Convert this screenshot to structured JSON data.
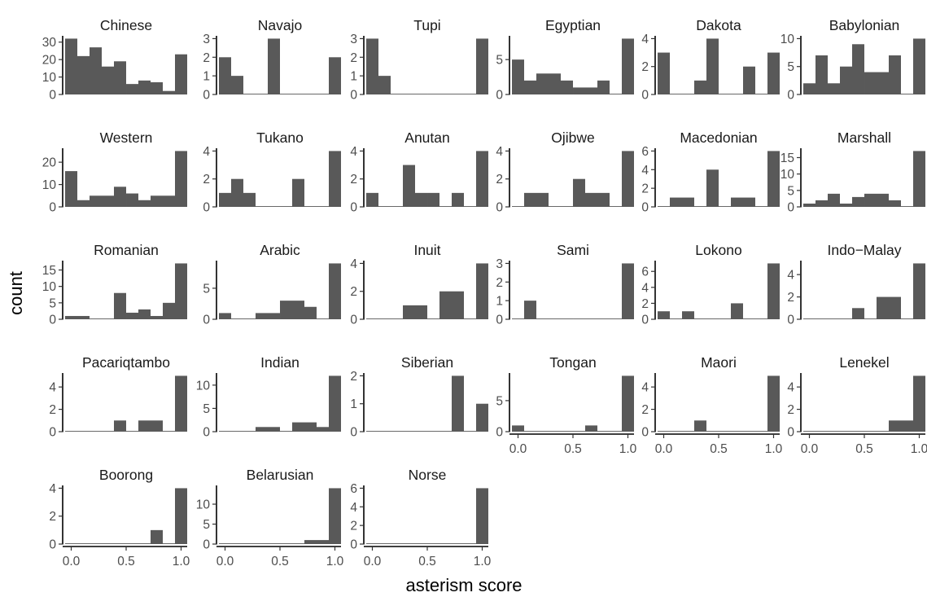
{
  "chart_data": {
    "type": "bar",
    "subtype": "faceted-histogram",
    "xlabel": "asterism score",
    "ylabel": "count",
    "bar_color": "#595959",
    "grid": false,
    "bin_centers": [
      0,
      0.1111,
      0.2222,
      0.3333,
      0.4444,
      0.5556,
      0.6667,
      0.7778,
      0.8889,
      1
    ],
    "x_range": [
      -0.0556,
      1.0556
    ],
    "x_ticks": [
      0,
      0.5,
      1
    ],
    "x_tick_labels": [
      "0.0",
      "0.5",
      "1.0"
    ],
    "panels": [
      {
        "name": "Chinese",
        "counts": [
          32,
          22,
          27,
          16,
          19,
          6,
          8,
          7,
          2,
          23
        ],
        "yticks": [
          0,
          10,
          20,
          30
        ],
        "ymax": 33.6
      },
      {
        "name": "Navajo",
        "counts": [
          2,
          1,
          0,
          0,
          3,
          0,
          0,
          0,
          0,
          2
        ],
        "yticks": [
          0,
          1,
          2,
          3
        ],
        "ymax": 3.15
      },
      {
        "name": "Tupi",
        "counts": [
          3,
          1,
          0,
          0,
          0,
          0,
          0,
          0,
          0,
          3
        ],
        "yticks": [
          0,
          1,
          2,
          3
        ],
        "ymax": 3.15
      },
      {
        "name": "Egyptian",
        "counts": [
          5,
          2,
          3,
          3,
          2,
          1,
          1,
          2,
          0,
          8
        ],
        "yticks": [
          0,
          5
        ],
        "ymax": 8.4
      },
      {
        "name": "Dakota",
        "counts": [
          3,
          0,
          0,
          1,
          4,
          0,
          0,
          2,
          0,
          3
        ],
        "yticks": [
          0,
          2,
          4
        ],
        "ymax": 4.2
      },
      {
        "name": "Babylonian",
        "counts": [
          2,
          7,
          2,
          5,
          9,
          4,
          4,
          7,
          0,
          10
        ],
        "yticks": [
          0,
          5,
          10
        ],
        "ymax": 10.5
      },
      {
        "name": "Western",
        "counts": [
          16,
          3,
          5,
          5,
          9,
          6,
          3,
          5,
          5,
          25
        ],
        "yticks": [
          0,
          10,
          20
        ],
        "ymax": 26.25
      },
      {
        "name": "Tukano",
        "counts": [
          1,
          2,
          1,
          0,
          0,
          0,
          2,
          0,
          0,
          4
        ],
        "yticks": [
          0,
          2,
          4
        ],
        "ymax": 4.2
      },
      {
        "name": "Anutan",
        "counts": [
          1,
          0,
          0,
          3,
          1,
          1,
          0,
          1,
          0,
          4
        ],
        "yticks": [
          0,
          2,
          4
        ],
        "ymax": 4.2
      },
      {
        "name": "Ojibwe",
        "counts": [
          0,
          1,
          1,
          0,
          0,
          2,
          1,
          1,
          0,
          4
        ],
        "yticks": [
          0,
          2,
          4
        ],
        "ymax": 4.2
      },
      {
        "name": "Macedonian",
        "counts": [
          0,
          1,
          1,
          0,
          4,
          0,
          1,
          1,
          0,
          6
        ],
        "yticks": [
          0,
          2,
          4,
          6
        ],
        "ymax": 6.3
      },
      {
        "name": "Marshall",
        "counts": [
          1,
          2,
          4,
          1,
          3,
          4,
          4,
          2,
          0,
          17
        ],
        "yticks": [
          0,
          5,
          10,
          15
        ],
        "ymax": 17.85
      },
      {
        "name": "Romanian",
        "counts": [
          1,
          1,
          0,
          0,
          8,
          2,
          3,
          1,
          5,
          17
        ],
        "yticks": [
          0,
          5,
          10,
          15
        ],
        "ymax": 17.85
      },
      {
        "name": "Arabic",
        "counts": [
          1,
          0,
          0,
          1,
          1,
          3,
          3,
          2,
          0,
          9
        ],
        "yticks": [
          0,
          5
        ],
        "ymax": 9.45
      },
      {
        "name": "Inuit",
        "counts": [
          0,
          0,
          0,
          1,
          1,
          0,
          2,
          2,
          0,
          4
        ],
        "yticks": [
          0,
          2,
          4
        ],
        "ymax": 4.2
      },
      {
        "name": "Sami",
        "counts": [
          0,
          1,
          0,
          0,
          0,
          0,
          0,
          0,
          0,
          3
        ],
        "yticks": [
          0,
          1,
          2,
          3
        ],
        "ymax": 3.15
      },
      {
        "name": "Lokono",
        "counts": [
          1,
          0,
          1,
          0,
          0,
          0,
          2,
          0,
          0,
          7
        ],
        "yticks": [
          0,
          2,
          4,
          6
        ],
        "ymax": 7.35
      },
      {
        "name": "Indo−Malay",
        "counts": [
          0,
          0,
          0,
          0,
          1,
          0,
          2,
          2,
          0,
          5
        ],
        "yticks": [
          0,
          2,
          4
        ],
        "ymax": 5.25
      },
      {
        "name": "Pacariqtambo",
        "counts": [
          0,
          0,
          0,
          0,
          1,
          0,
          1,
          1,
          0,
          5
        ],
        "yticks": [
          0,
          2,
          4
        ],
        "ymax": 5.25
      },
      {
        "name": "Indian",
        "counts": [
          0,
          0,
          0,
          1,
          1,
          0,
          2,
          2,
          1,
          12
        ],
        "yticks": [
          0,
          5,
          10
        ],
        "ymax": 12.6
      },
      {
        "name": "Siberian",
        "counts": [
          0,
          0,
          0,
          0,
          0,
          0,
          0,
          2,
          0,
          1
        ],
        "yticks": [
          0,
          1,
          2
        ],
        "ymax": 2.1
      },
      {
        "name": "Tongan",
        "counts": [
          1,
          0,
          0,
          0,
          0,
          0,
          1,
          0,
          0,
          9
        ],
        "yticks": [
          0,
          5
        ],
        "ymax": 9.45
      },
      {
        "name": "Maori",
        "counts": [
          0,
          0,
          0,
          1,
          0,
          0,
          0,
          0,
          0,
          5
        ],
        "yticks": [
          0,
          2,
          4
        ],
        "ymax": 5.25
      },
      {
        "name": "Lenekel",
        "counts": [
          0,
          0,
          0,
          0,
          0,
          0,
          0,
          1,
          1,
          5
        ],
        "yticks": [
          0,
          2,
          4
        ],
        "ymax": 5.25
      },
      {
        "name": "Boorong",
        "counts": [
          0,
          0,
          0,
          0,
          0,
          0,
          0,
          1,
          0,
          4
        ],
        "yticks": [
          0,
          2,
          4
        ],
        "ymax": 4.2
      },
      {
        "name": "Belarusian",
        "counts": [
          0,
          0,
          0,
          0,
          0,
          0,
          0,
          1,
          1,
          14
        ],
        "yticks": [
          0,
          5,
          10
        ],
        "ymax": 14.7
      },
      {
        "name": "Norse",
        "counts": [
          0,
          0,
          0,
          0,
          0,
          0,
          0,
          0,
          0,
          6
        ],
        "yticks": [
          0,
          2,
          4,
          6
        ],
        "ymax": 6.3
      }
    ]
  }
}
